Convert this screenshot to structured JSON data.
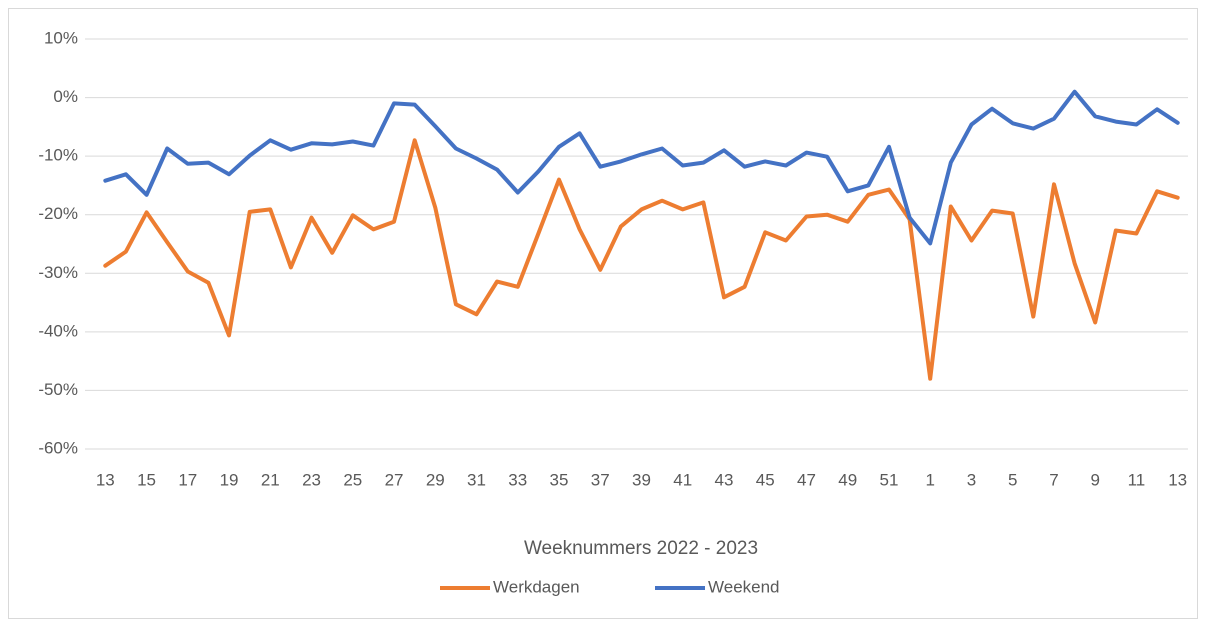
{
  "chart_data": {
    "type": "line",
    "x_label": "Weeknummers 2022 - 2023",
    "categories": [
      "13",
      null,
      "15",
      null,
      "17",
      null,
      "19",
      null,
      "21",
      null,
      "23",
      null,
      "25",
      null,
      "27",
      null,
      "29",
      null,
      "31",
      null,
      "33",
      null,
      "35",
      null,
      "37",
      null,
      "39",
      null,
      "41",
      null,
      "43",
      null,
      "45",
      null,
      "47",
      null,
      "49",
      null,
      "51",
      null,
      "1",
      null,
      "3",
      null,
      "5",
      null,
      "7",
      null,
      "9",
      null,
      "11",
      null,
      "13"
    ],
    "series": [
      {
        "name": "Werkdagen",
        "color": "#ed7d31",
        "values": [
          -28.7,
          -26.3,
          -19.6,
          -24.7,
          -29.7,
          -31.6,
          -40.6,
          -19.5,
          -19.1,
          -29,
          -20.5,
          -26.5,
          -20.1,
          -22.5,
          -21.2,
          -7.3,
          -18.8,
          -35.3,
          -37,
          -31.4,
          -32.3,
          -23.2,
          -14,
          -22.5,
          -29.4,
          -22,
          -19.1,
          -17.6,
          -19.1,
          -17.9,
          -34.1,
          -32.3,
          -23,
          -24.4,
          -20.3,
          -20,
          -21.2,
          -16.6,
          -15.7,
          -20.8,
          -48,
          -18.6,
          -24.4,
          -19.3,
          -19.8,
          -37.4,
          -14.8,
          -28.3,
          -38.4,
          -22.7,
          -23.2,
          -16,
          -17.1
        ]
      },
      {
        "name": "Weekend",
        "color": "#4472c4",
        "values": [
          -14.2,
          -13.1,
          -16.6,
          -8.7,
          -11.3,
          -11.1,
          -13.1,
          -9.9,
          -7.3,
          -8.9,
          -7.8,
          -8,
          -7.5,
          -8.2,
          -1,
          -1.2,
          -4.9,
          -8.7,
          -10.4,
          -12.3,
          -16.2,
          -12.6,
          -8.4,
          -6.1,
          -11.8,
          -10.9,
          -9.7,
          -8.7,
          -11.6,
          -11.1,
          -9,
          -11.8,
          -10.9,
          -11.6,
          -9.4,
          -10.1,
          -16,
          -15,
          -8.4,
          -20.5,
          -24.9,
          -11.1,
          -4.6,
          -1.9,
          -4.4,
          -5.3,
          -3.6,
          1,
          -3.2,
          -4.1,
          -4.6,
          -2,
          -4.3
        ]
      }
    ],
    "ylim": [
      -60,
      10
    ],
    "yticks": [
      {
        "value": -60,
        "label": "-60%"
      },
      {
        "value": -50,
        "label": "-50%"
      },
      {
        "value": -40,
        "label": "-40%"
      },
      {
        "value": -30,
        "label": "-30%"
      },
      {
        "value": -20,
        "label": "-20%"
      },
      {
        "value": -10,
        "label": "-10%"
      },
      {
        "value": 0,
        "label": "0%"
      },
      {
        "value": 10,
        "label": "10%"
      }
    ],
    "grid": true,
    "legend": "bottom"
  }
}
